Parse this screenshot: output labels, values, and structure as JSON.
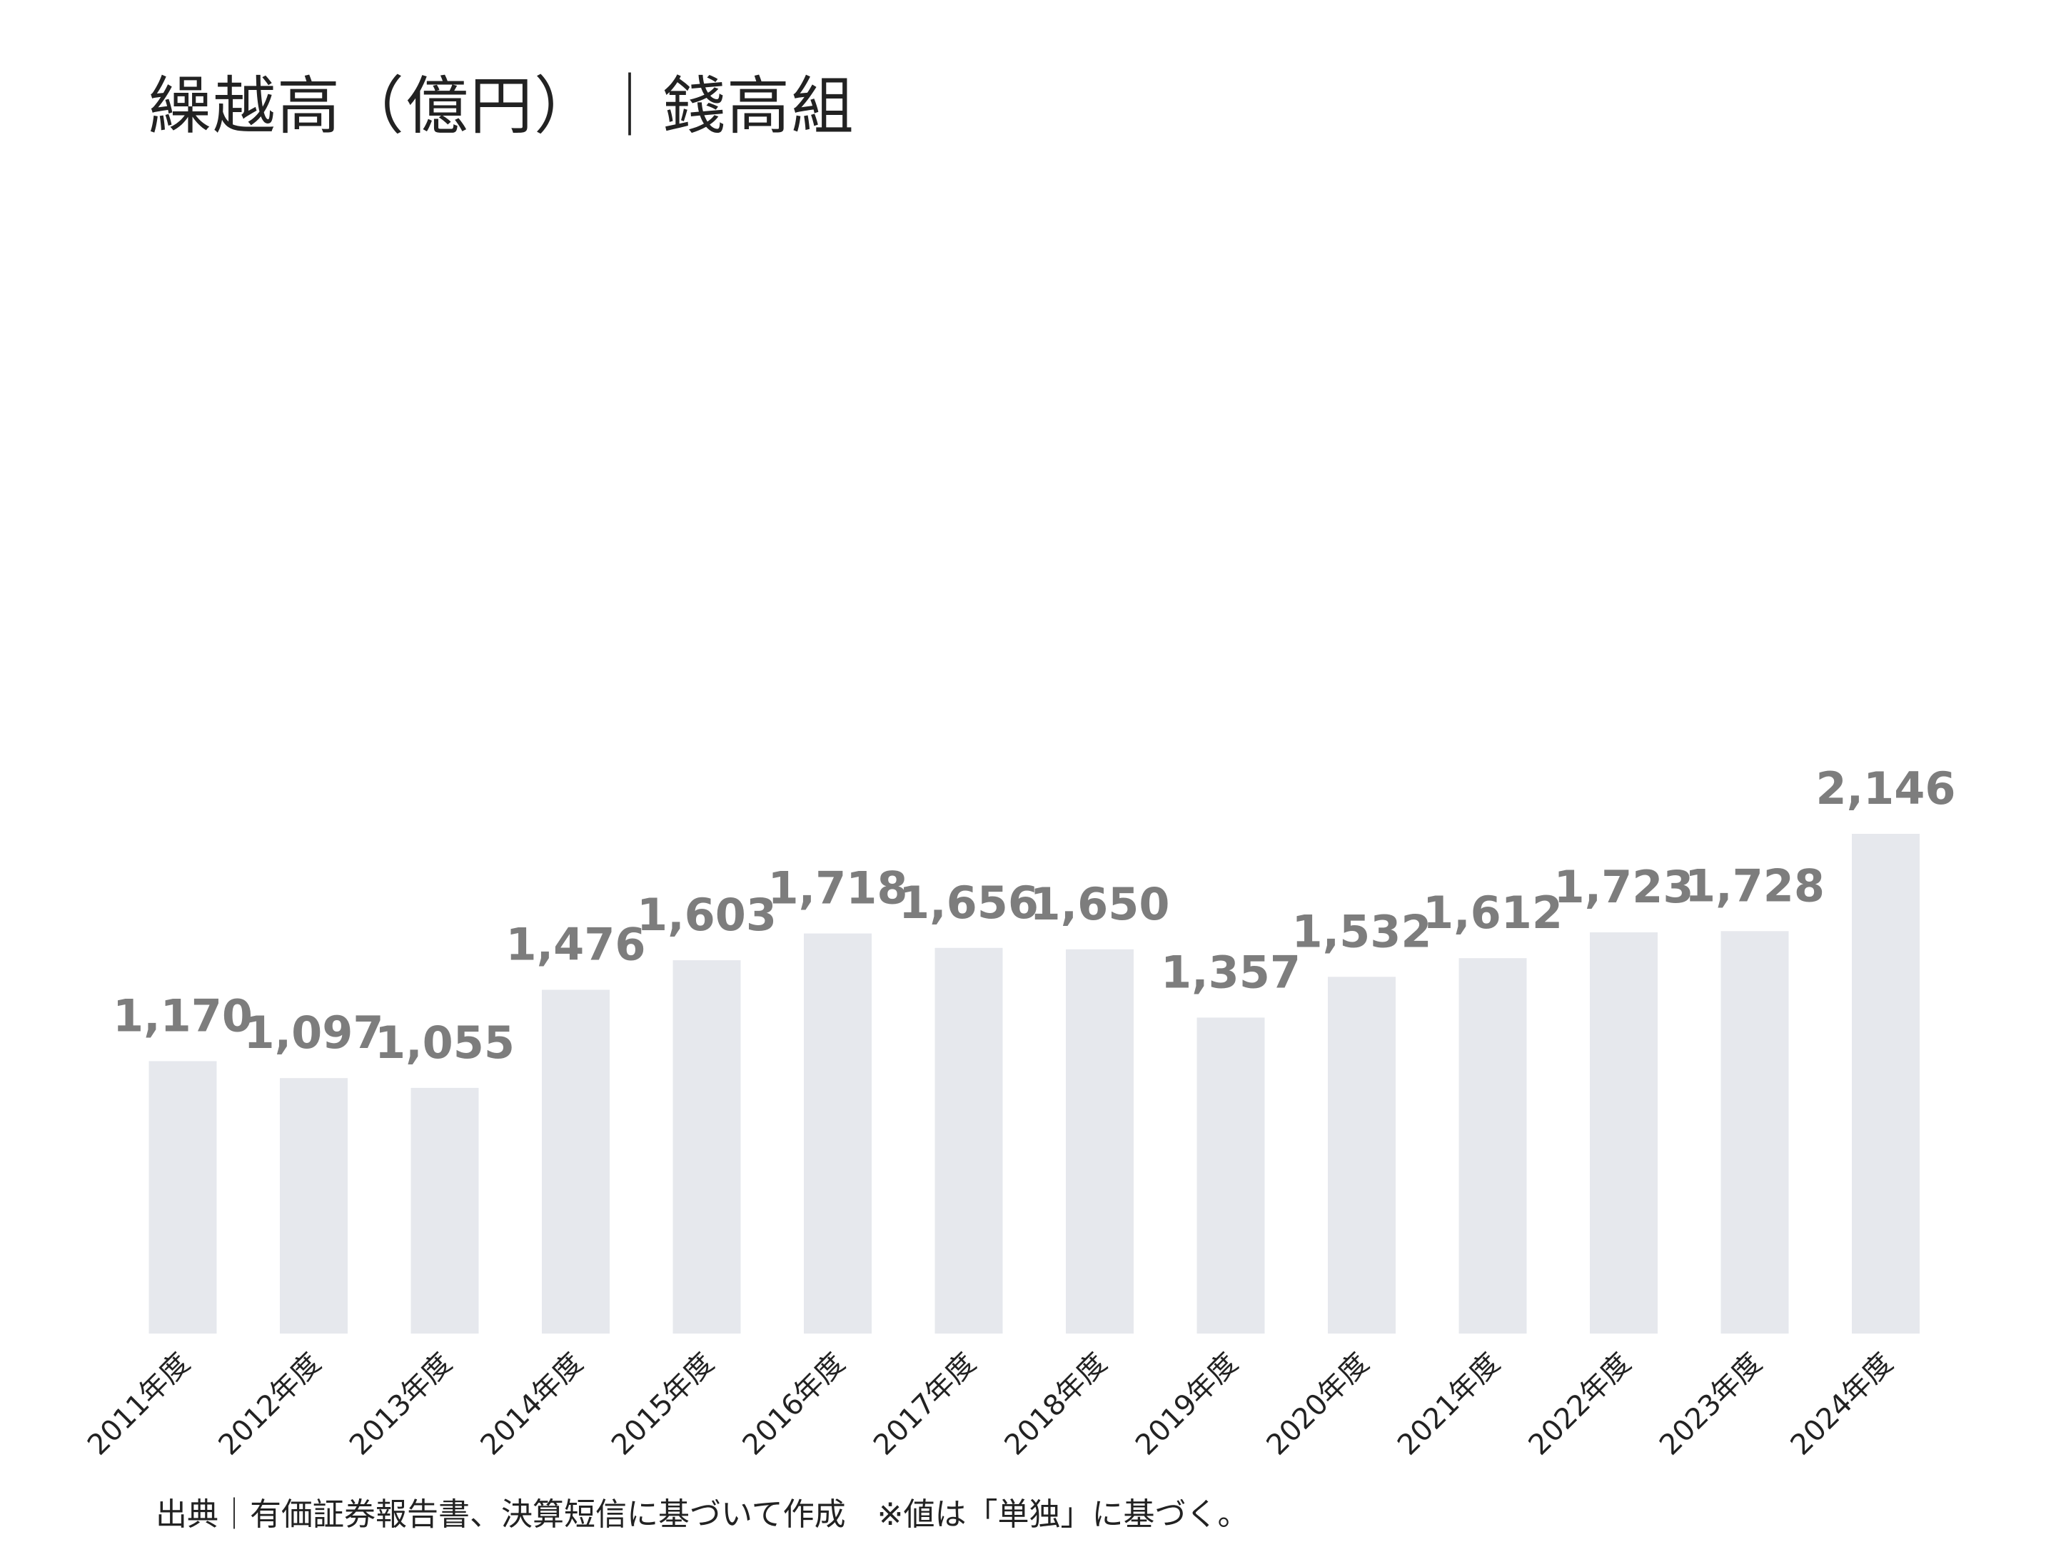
{
  "page": {
    "title": "繰越高（億円）｜錢高組",
    "source_note": "出典｜有価証券報告書、決算短信に基づいて作成　※値は「単独」に基づく。"
  },
  "colors": {
    "bar": "#e6e8ed",
    "value_label": "#7d7d7d",
    "tick_label": "#222222"
  },
  "chart_data": {
    "type": "bar",
    "title": "繰越高（億円）｜錢高組",
    "xlabel": "",
    "ylabel": "",
    "ylim": [
      0,
      2146
    ],
    "grid": false,
    "legend": "none",
    "categories": [
      "2011年度",
      "2012年度",
      "2013年度",
      "2014年度",
      "2015年度",
      "2016年度",
      "2017年度",
      "2018年度",
      "2019年度",
      "2020年度",
      "2021年度",
      "2022年度",
      "2023年度",
      "2024年度"
    ],
    "values": [
      1170,
      1097,
      1055,
      1476,
      1603,
      1718,
      1656,
      1650,
      1357,
      1532,
      1612,
      1723,
      1728,
      2146
    ],
    "value_labels": [
      "1,170",
      "1,097",
      "1,055",
      "1,476",
      "1,603",
      "1,718",
      "1,656",
      "1,650",
      "1,357",
      "1,532",
      "1,612",
      "1,723",
      "1,728",
      "2,146"
    ]
  }
}
